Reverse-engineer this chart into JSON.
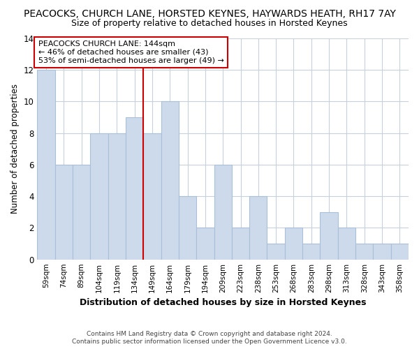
{
  "title": "PEACOCKS, CHURCH LANE, HORSTED KEYNES, HAYWARDS HEATH, RH17 7AY",
  "subtitle": "Size of property relative to detached houses in Horsted Keynes",
  "xlabel": "Distribution of detached houses by size in Horsted Keynes",
  "ylabel": "Number of detached properties",
  "footer_line1": "Contains HM Land Registry data © Crown copyright and database right 2024.",
  "footer_line2": "Contains public sector information licensed under the Open Government Licence v3.0.",
  "bar_labels": [
    "59sqm",
    "74sqm",
    "89sqm",
    "104sqm",
    "119sqm",
    "134sqm",
    "149sqm",
    "164sqm",
    "179sqm",
    "194sqm",
    "209sqm",
    "223sqm",
    "238sqm",
    "253sqm",
    "268sqm",
    "283sqm",
    "298sqm",
    "313sqm",
    "328sqm",
    "343sqm",
    "358sqm"
  ],
  "bar_heights": [
    12,
    6,
    6,
    8,
    8,
    9,
    8,
    10,
    4,
    2,
    6,
    2,
    4,
    1,
    2,
    1,
    3,
    2,
    1,
    1,
    1
  ],
  "bar_color": "#ccdaec",
  "bar_edge_color": "#aabfd8",
  "background_color": "#ffffff",
  "grid_color": "#c8d0dc",
  "vline_x": 5.5,
  "vline_color": "#cc0000",
  "annotation_title": "PEACOCKS CHURCH LANE: 144sqm",
  "annotation_line2": "← 46% of detached houses are smaller (43)",
  "annotation_line3": "53% of semi-detached houses are larger (49) →",
  "annotation_box_color": "#cc0000",
  "ylim": [
    0,
    14
  ],
  "yticks": [
    0,
    2,
    4,
    6,
    8,
    10,
    12,
    14
  ],
  "title_fontsize": 10,
  "subtitle_fontsize": 9,
  "ylabel_fontsize": 8.5,
  "xlabel_fontsize": 9
}
